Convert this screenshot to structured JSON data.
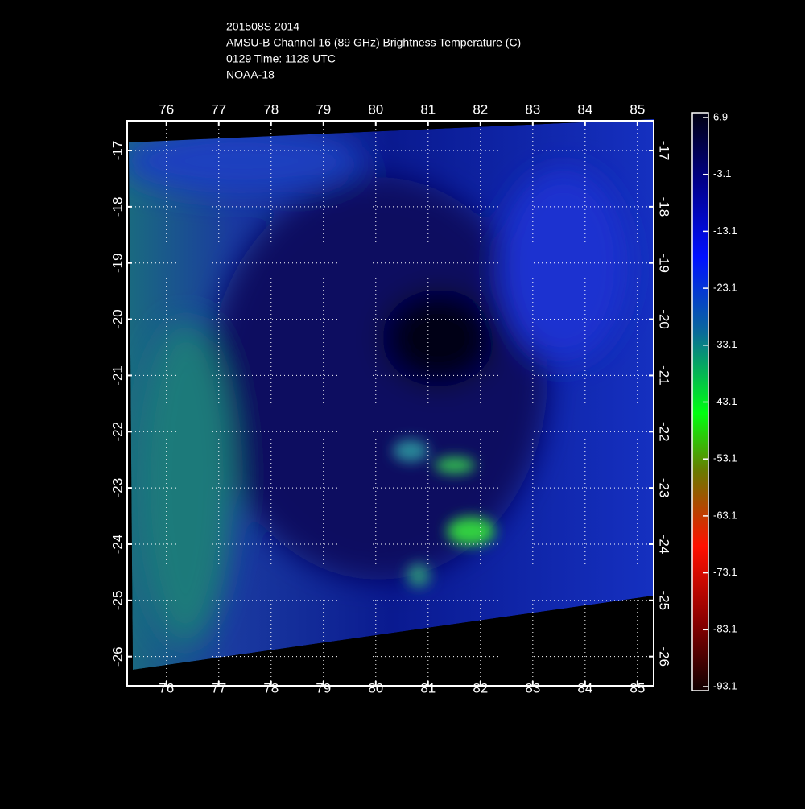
{
  "header": {
    "lines": [
      "201508S 2014",
      "AMSU-B Channel 16 (89 GHz) Brightness Temperature (C)",
      "0129 Time: 1128 UTC",
      "NOAA-18"
    ]
  },
  "map": {
    "lonlim": [
      75.25,
      85.31
    ],
    "latlim": [
      -26.52,
      -16.47
    ],
    "lonticks": [
      76,
      77,
      78,
      79,
      80,
      81,
      82,
      83,
      84,
      85
    ],
    "latticks": [
      -17,
      -18,
      -19,
      -20,
      -21,
      -22,
      -23,
      -24,
      -25,
      -26
    ],
    "grid": true
  },
  "colorbar": {
    "lim": [
      -93.1,
      6.9
    ],
    "ticks": [
      6.9,
      -3.1,
      -13.1,
      -23.1,
      -33.1,
      -43.1,
      -53.1,
      -63.1,
      -73.1,
      -83.1,
      -93.1
    ]
  }
}
